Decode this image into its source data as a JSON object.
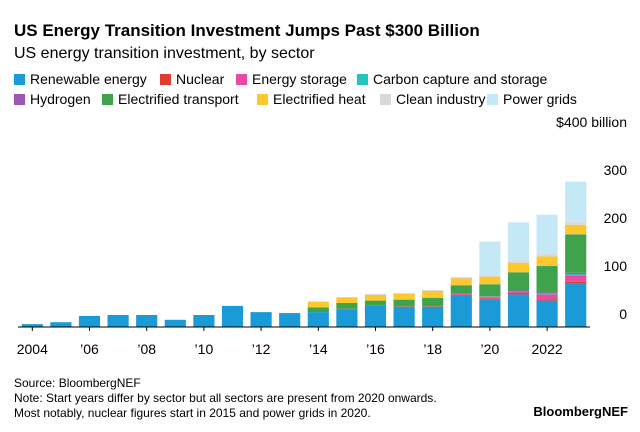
{
  "chart_data": {
    "type": "stacked-bar",
    "title": "US Energy Transition Investment Jumps Past $300 Billion",
    "subtitle": "US energy transition investment, by sector",
    "categories": [
      "2004",
      null,
      "’06",
      null,
      "’08",
      null,
      "’10",
      null,
      "’12",
      null,
      "’14",
      null,
      "’16",
      null,
      "’18",
      null,
      "’20",
      null,
      "2022",
      null
    ],
    "series": [
      {
        "name": "Renewable energy",
        "color": "#1a9ad6",
        "values": [
          6,
          10,
          23,
          25,
          25,
          15,
          25,
          44,
          31,
          29,
          31,
          37,
          44,
          42,
          42,
          65,
          58,
          68,
          55,
          90
        ]
      },
      {
        "name": "Nuclear",
        "color": "#e03c31",
        "values": [
          null,
          null,
          null,
          null,
          null,
          null,
          null,
          null,
          null,
          null,
          null,
          1,
          1,
          1,
          1,
          2,
          2,
          3,
          3,
          4
        ]
      },
      {
        "name": "Energy storage",
        "color": "#e64ca0",
        "values": [
          null,
          null,
          null,
          null,
          null,
          null,
          null,
          null,
          null,
          null,
          null,
          null,
          null,
          null,
          null,
          2,
          2,
          3,
          10,
          14
        ]
      },
      {
        "name": "Carbon capture and storage",
        "color": "#1ec8b4",
        "values": [
          null,
          null,
          null,
          null,
          null,
          null,
          null,
          null,
          null,
          null,
          null,
          null,
          null,
          null,
          null,
          null,
          1,
          1,
          2,
          2
        ]
      },
      {
        "name": "Hydrogen",
        "color": "#9b59b6",
        "values": [
          null,
          null,
          null,
          null,
          null,
          null,
          null,
          null,
          null,
          null,
          null,
          null,
          null,
          null,
          null,
          null,
          1,
          1,
          2,
          3
        ]
      },
      {
        "name": "Electrified transport",
        "color": "#3fa34d",
        "values": [
          null,
          null,
          null,
          null,
          null,
          null,
          null,
          null,
          null,
          null,
          10,
          12,
          10,
          14,
          18,
          18,
          25,
          38,
          55,
          80
        ]
      },
      {
        "name": "Electrified heat",
        "color": "#fdc82f",
        "values": [
          null,
          null,
          null,
          null,
          null,
          null,
          null,
          null,
          null,
          null,
          12,
          12,
          12,
          12,
          14,
          14,
          16,
          20,
          20,
          20
        ]
      },
      {
        "name": "Clean industry",
        "color": "#d9d9d9",
        "values": [
          null,
          null,
          null,
          null,
          null,
          null,
          null,
          null,
          null,
          null,
          null,
          null,
          2,
          2,
          2,
          3,
          3,
          4,
          5,
          6
        ]
      },
      {
        "name": "Power grids",
        "color": "#c5e8f7",
        "values": [
          null,
          null,
          null,
          null,
          null,
          null,
          null,
          null,
          null,
          null,
          null,
          null,
          null,
          null,
          null,
          null,
          70,
          80,
          82,
          84
        ]
      }
    ],
    "ylim": [
      0,
      400
    ],
    "yticks": [
      0,
      100,
      200,
      300,
      {
        "value": 400,
        "label": "$400 billion"
      }
    ],
    "grid": false,
    "source": "Source: BloombergNEF",
    "notes": [
      "Note: Start years differ by sector but all sectors are present from 2020 onwards.",
      "Most notably, nuclear figures start in 2015 and power grids in 2020."
    ],
    "brand": "BloombergNEF"
  }
}
